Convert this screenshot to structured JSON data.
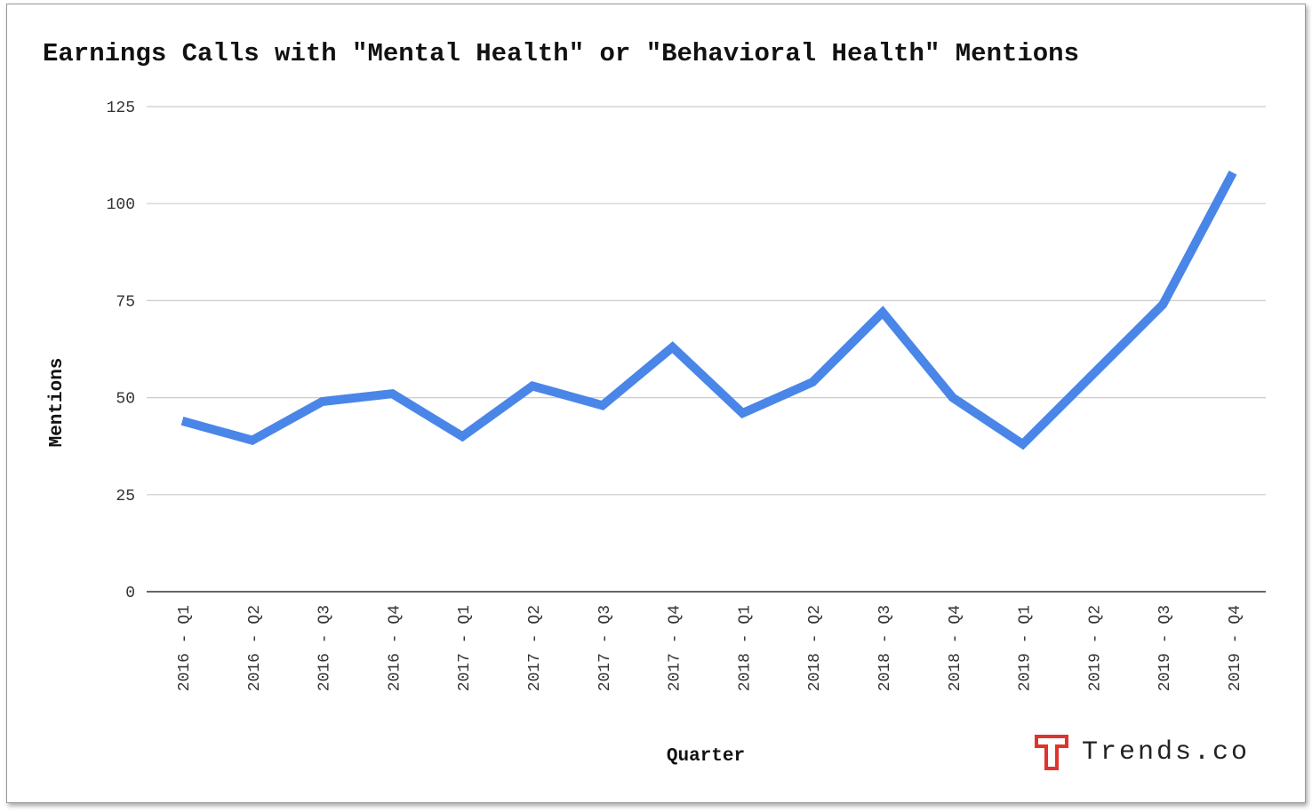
{
  "colors": {
    "line": "#4a86e8",
    "grid": "#cccccc",
    "axis": "#333333",
    "logo": "#e0332b"
  },
  "brand": {
    "name": "Trends.co",
    "icon": "trends-logo-icon"
  },
  "chart_data": {
    "type": "line",
    "title": "Earnings Calls with \"Mental Health\" or \"Behavioral Health\" Mentions",
    "xlabel": "Quarter",
    "ylabel": "Mentions",
    "ylim": [
      0,
      125
    ],
    "yticks": [
      0,
      25,
      50,
      75,
      100,
      125
    ],
    "grid": true,
    "categories": [
      "2016 - Q1",
      "2016 - Q2",
      "2016 - Q3",
      "2016 - Q4",
      "2017 - Q1",
      "2017 - Q2",
      "2017 - Q3",
      "2017 - Q4",
      "2018 - Q1",
      "2018 - Q2",
      "2018 - Q3",
      "2018 - Q4",
      "2019 - Q1",
      "2019 - Q2",
      "2019 - Q3",
      "2019 - Q4"
    ],
    "series": [
      {
        "values": [
          44,
          39,
          49,
          51,
          40,
          53,
          48,
          63,
          46,
          54,
          72,
          50,
          38,
          56,
          74,
          108
        ]
      }
    ]
  }
}
